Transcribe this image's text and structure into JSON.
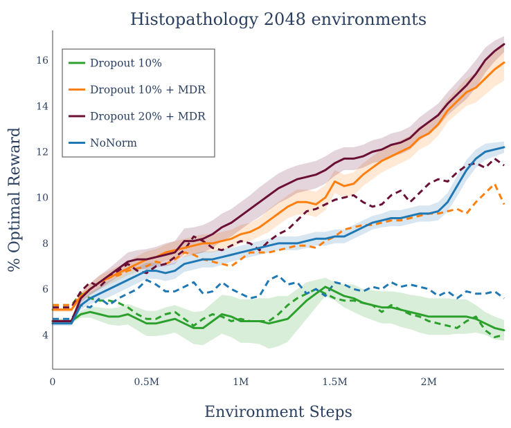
{
  "chart_data": {
    "type": "line",
    "title": "Histopathology 2048 environments",
    "xlabel": "Environment Steps",
    "ylabel": "% Optimal Reward",
    "xlim": [
      0,
      2.4
    ],
    "ylim": [
      2.5,
      17.3
    ],
    "x_ticks": [
      {
        "value": 0,
        "label": "0"
      },
      {
        "value": 0.5,
        "label": "0.5M"
      },
      {
        "value": 1,
        "label": "1M"
      },
      {
        "value": 1.5,
        "label": "1.5M"
      },
      {
        "value": 2,
        "label": "2M"
      }
    ],
    "y_ticks": [
      {
        "value": 4,
        "label": "4"
      },
      {
        "value": 6,
        "label": "6"
      },
      {
        "value": 8,
        "label": "8"
      },
      {
        "value": 10,
        "label": "10"
      },
      {
        "value": 12,
        "label": "12"
      },
      {
        "value": 14,
        "label": "14"
      },
      {
        "value": 16,
        "label": "16"
      }
    ],
    "legend_position": "top-left",
    "series": [
      {
        "name": "Dropout 10%",
        "color": "#2ca02c",
        "legend": true,
        "style": "solid",
        "x": [
          0,
          0.1,
          0.15,
          0.2,
          0.25,
          0.3,
          0.35,
          0.4,
          0.45,
          0.5,
          0.55,
          0.6,
          0.65,
          0.7,
          0.75,
          0.8,
          0.85,
          0.9,
          0.95,
          1.0,
          1.05,
          1.1,
          1.15,
          1.2,
          1.25,
          1.3,
          1.35,
          1.4,
          1.45,
          1.5,
          1.55,
          1.6,
          1.65,
          1.7,
          1.75,
          1.8,
          1.85,
          1.9,
          1.95,
          2.0,
          2.05,
          2.1,
          2.15,
          2.2,
          2.25,
          2.3,
          2.35,
          2.4
        ],
        "y": [
          4.6,
          4.6,
          4.9,
          5.0,
          4.9,
          4.8,
          4.8,
          4.9,
          4.7,
          4.5,
          4.5,
          4.6,
          4.7,
          4.5,
          4.3,
          4.3,
          4.6,
          4.9,
          4.8,
          4.6,
          4.6,
          4.6,
          4.5,
          4.6,
          4.7,
          5.1,
          5.5,
          5.8,
          6.1,
          5.9,
          5.7,
          5.6,
          5.4,
          5.3,
          5.2,
          5.2,
          5.1,
          5.0,
          4.9,
          4.8,
          4.8,
          4.8,
          4.8,
          4.8,
          4.7,
          4.5,
          4.3,
          4.2
        ],
        "band_width": [
          0.1,
          0.1,
          0.15,
          0.25,
          0.3,
          0.35,
          0.4,
          0.45,
          0.5,
          0.55,
          0.55,
          0.6,
          0.6,
          0.65,
          0.7,
          0.75,
          0.8,
          0.85,
          0.9,
          0.95,
          0.95,
          1.0,
          1.1,
          1.1,
          1.0,
          0.9,
          0.8,
          0.6,
          0.4,
          0.4,
          0.5,
          0.6,
          0.6,
          0.65,
          0.7,
          0.7,
          0.75,
          0.75,
          0.8,
          0.8,
          0.8,
          0.8,
          0.75,
          0.75,
          0.6,
          0.5,
          0.5,
          0.45
        ]
      },
      {
        "name": "Dropout 10% + MDR",
        "color": "#ff7f0e",
        "legend": true,
        "style": "solid",
        "x": [
          0,
          0.1,
          0.15,
          0.2,
          0.25,
          0.3,
          0.35,
          0.4,
          0.45,
          0.5,
          0.55,
          0.6,
          0.65,
          0.7,
          0.75,
          0.8,
          0.85,
          0.9,
          0.95,
          1.0,
          1.05,
          1.1,
          1.15,
          1.2,
          1.25,
          1.3,
          1.35,
          1.4,
          1.45,
          1.5,
          1.55,
          1.6,
          1.65,
          1.7,
          1.75,
          1.8,
          1.85,
          1.9,
          1.95,
          2.0,
          2.05,
          2.1,
          2.15,
          2.2,
          2.25,
          2.3,
          2.35,
          2.4
        ],
        "y": [
          5.1,
          5.1,
          5.7,
          6.0,
          6.3,
          6.5,
          6.7,
          6.9,
          7.1,
          7.3,
          7.4,
          7.6,
          7.7,
          7.8,
          7.9,
          8.0,
          8.0,
          8.1,
          8.2,
          8.4,
          8.5,
          8.7,
          9.0,
          9.3,
          9.6,
          9.8,
          9.8,
          9.7,
          10.0,
          10.7,
          10.5,
          10.6,
          11.0,
          11.3,
          11.6,
          11.8,
          12.0,
          12.2,
          12.6,
          12.8,
          13.2,
          13.8,
          14.2,
          14.6,
          14.8,
          15.2,
          15.6,
          15.9
        ],
        "band_width": [
          0.1,
          0.1,
          0.2,
          0.25,
          0.3,
          0.3,
          0.3,
          0.3,
          0.35,
          0.35,
          0.35,
          0.35,
          0.4,
          0.4,
          0.4,
          0.4,
          0.4,
          0.4,
          0.4,
          0.4,
          0.4,
          0.4,
          0.5,
          0.5,
          0.5,
          0.55,
          0.55,
          0.55,
          0.55,
          0.5,
          0.5,
          0.5,
          0.5,
          0.5,
          0.5,
          0.5,
          0.5,
          0.5,
          0.5,
          0.5,
          0.5,
          0.5,
          0.55,
          0.6,
          0.65,
          0.7,
          0.75,
          0.8
        ]
      },
      {
        "name": "Dropout 20% + MDR",
        "color": "#6a0f36",
        "legend": true,
        "style": "solid",
        "x": [
          0,
          0.1,
          0.15,
          0.2,
          0.25,
          0.3,
          0.35,
          0.4,
          0.45,
          0.5,
          0.55,
          0.6,
          0.65,
          0.7,
          0.75,
          0.8,
          0.85,
          0.9,
          0.95,
          1.0,
          1.05,
          1.1,
          1.15,
          1.2,
          1.25,
          1.3,
          1.35,
          1.4,
          1.45,
          1.5,
          1.55,
          1.6,
          1.65,
          1.7,
          1.75,
          1.8,
          1.85,
          1.9,
          1.95,
          2.0,
          2.05,
          2.1,
          2.15,
          2.2,
          2.25,
          2.3,
          2.35,
          2.4
        ],
        "y": [
          4.6,
          4.6,
          5.6,
          6.0,
          6.3,
          6.6,
          6.9,
          7.2,
          7.3,
          7.3,
          7.4,
          7.5,
          7.6,
          8.1,
          8.1,
          8.2,
          8.4,
          8.7,
          8.9,
          9.2,
          9.5,
          9.8,
          10.1,
          10.4,
          10.6,
          10.8,
          10.9,
          11.0,
          11.2,
          11.5,
          11.7,
          11.7,
          11.8,
          12.0,
          12.1,
          12.3,
          12.4,
          12.6,
          13.0,
          13.3,
          13.6,
          14.1,
          14.5,
          14.9,
          15.4,
          16.0,
          16.4,
          16.7
        ],
        "band_width": [
          0.1,
          0.1,
          0.2,
          0.25,
          0.3,
          0.3,
          0.35,
          0.4,
          0.4,
          0.45,
          0.45,
          0.5,
          0.5,
          0.55,
          0.6,
          0.6,
          0.6,
          0.6,
          0.6,
          0.6,
          0.6,
          0.65,
          0.65,
          0.65,
          0.65,
          0.6,
          0.6,
          0.6,
          0.6,
          0.55,
          0.5,
          0.5,
          0.5,
          0.5,
          0.5,
          0.5,
          0.5,
          0.5,
          0.5,
          0.5,
          0.5,
          0.5,
          0.55,
          0.6,
          0.6,
          0.55,
          0.45,
          0.35
        ]
      },
      {
        "name": "NoNorm",
        "color": "#1f77b4",
        "legend": true,
        "style": "solid",
        "x": [
          0,
          0.1,
          0.15,
          0.2,
          0.25,
          0.3,
          0.35,
          0.4,
          0.45,
          0.5,
          0.55,
          0.6,
          0.65,
          0.7,
          0.75,
          0.8,
          0.85,
          0.9,
          0.95,
          1.0,
          1.05,
          1.1,
          1.15,
          1.2,
          1.25,
          1.3,
          1.35,
          1.4,
          1.45,
          1.5,
          1.55,
          1.6,
          1.65,
          1.7,
          1.75,
          1.8,
          1.85,
          1.9,
          1.95,
          2.0,
          2.05,
          2.1,
          2.15,
          2.2,
          2.25,
          2.3,
          2.35,
          2.4
        ],
        "y": [
          4.5,
          4.5,
          5.3,
          5.6,
          5.8,
          6.0,
          6.2,
          6.4,
          6.6,
          6.8,
          6.8,
          6.7,
          6.8,
          7.1,
          7.2,
          7.3,
          7.3,
          7.4,
          7.5,
          7.6,
          7.7,
          7.8,
          7.9,
          8.0,
          8.0,
          8.0,
          8.1,
          8.2,
          8.2,
          8.3,
          8.3,
          8.5,
          8.7,
          8.9,
          9.0,
          9.1,
          9.1,
          9.2,
          9.3,
          9.3,
          9.4,
          9.8,
          10.5,
          11.2,
          11.7,
          12.0,
          12.1,
          12.2
        ],
        "band_width": [
          0.1,
          0.1,
          0.2,
          0.25,
          0.3,
          0.35,
          0.35,
          0.35,
          0.35,
          0.35,
          0.35,
          0.35,
          0.35,
          0.35,
          0.35,
          0.35,
          0.35,
          0.35,
          0.3,
          0.3,
          0.3,
          0.3,
          0.3,
          0.3,
          0.3,
          0.3,
          0.3,
          0.3,
          0.3,
          0.3,
          0.3,
          0.3,
          0.3,
          0.3,
          0.3,
          0.35,
          0.35,
          0.35,
          0.35,
          0.35,
          0.4,
          0.4,
          0.45,
          0.45,
          0.4,
          0.35,
          0.3,
          0.25
        ]
      },
      {
        "name": "Dropout 10% (dashed)",
        "color": "#2ca02c",
        "legend": false,
        "style": "dashed",
        "x": [
          0,
          0.1,
          0.15,
          0.2,
          0.25,
          0.3,
          0.35,
          0.4,
          0.45,
          0.5,
          0.55,
          0.6,
          0.65,
          0.7,
          0.75,
          0.8,
          0.85,
          0.9,
          0.95,
          1.0,
          1.05,
          1.1,
          1.15,
          1.2,
          1.25,
          1.3,
          1.35,
          1.4,
          1.45,
          1.5,
          1.55,
          1.6,
          1.65,
          1.7,
          1.75,
          1.8,
          1.85,
          1.9,
          1.95,
          2.0,
          2.05,
          2.1,
          2.15,
          2.2,
          2.25,
          2.3,
          2.35,
          2.4
        ],
        "y": [
          5.3,
          5.3,
          5.8,
          5.6,
          5.5,
          5.5,
          5.4,
          5.2,
          4.9,
          4.7,
          4.7,
          4.9,
          5.0,
          4.7,
          4.4,
          4.7,
          4.9,
          4.8,
          4.6,
          4.7,
          4.6,
          4.6,
          4.6,
          4.9,
          5.3,
          5.6,
          5.8,
          6.0,
          5.8,
          5.6,
          5.5,
          5.5,
          5.4,
          5.3,
          5.0,
          5.3,
          5.1,
          4.9,
          4.8,
          4.6,
          4.5,
          4.4,
          4.3,
          4.6,
          4.8,
          4.2,
          3.9,
          4.0
        ]
      },
      {
        "name": "Dropout 10% + MDR (dashed)",
        "color": "#ff7f0e",
        "legend": false,
        "style": "dashed",
        "x": [
          0,
          0.1,
          0.15,
          0.2,
          0.25,
          0.3,
          0.35,
          0.4,
          0.45,
          0.5,
          0.55,
          0.6,
          0.65,
          0.7,
          0.75,
          0.8,
          0.85,
          0.9,
          0.95,
          1.0,
          1.05,
          1.1,
          1.15,
          1.2,
          1.25,
          1.3,
          1.35,
          1.4,
          1.45,
          1.5,
          1.55,
          1.6,
          1.65,
          1.7,
          1.75,
          1.8,
          1.85,
          1.9,
          1.95,
          2.0,
          2.05,
          2.1,
          2.15,
          2.2,
          2.25,
          2.3,
          2.35,
          2.4
        ],
        "y": [
          5.3,
          5.3,
          5.7,
          6.0,
          6.3,
          6.5,
          6.6,
          6.8,
          6.9,
          7.0,
          7.2,
          7.1,
          7.3,
          7.6,
          7.5,
          7.3,
          7.2,
          7.1,
          7.0,
          7.3,
          7.6,
          7.6,
          7.6,
          7.7,
          7.8,
          7.9,
          7.9,
          7.8,
          8.1,
          8.3,
          8.6,
          8.7,
          8.8,
          8.8,
          8.9,
          9.0,
          9.0,
          9.1,
          9.2,
          9.3,
          9.3,
          9.4,
          9.5,
          9.3,
          9.8,
          10.2,
          10.6,
          9.7
        ]
      },
      {
        "name": "Dropout 20% + MDR (dashed)",
        "color": "#6a0f36",
        "legend": false,
        "style": "dashed",
        "x": [
          0,
          0.1,
          0.15,
          0.2,
          0.25,
          0.3,
          0.35,
          0.4,
          0.45,
          0.5,
          0.55,
          0.6,
          0.65,
          0.7,
          0.75,
          0.8,
          0.85,
          0.9,
          0.95,
          1.0,
          1.05,
          1.1,
          1.15,
          1.2,
          1.25,
          1.3,
          1.35,
          1.4,
          1.45,
          1.5,
          1.55,
          1.6,
          1.65,
          1.7,
          1.75,
          1.8,
          1.85,
          1.9,
          1.95,
          2.0,
          2.05,
          2.1,
          2.15,
          2.2,
          2.25,
          2.3,
          2.35,
          2.4
        ],
        "y": [
          5.2,
          5.2,
          5.9,
          6.3,
          6.1,
          6.5,
          6.8,
          7.1,
          6.8,
          6.7,
          7.0,
          7.1,
          7.4,
          7.7,
          8.3,
          8.1,
          7.8,
          7.7,
          7.9,
          8.1,
          8.0,
          7.7,
          8.1,
          8.4,
          8.6,
          9.0,
          9.4,
          9.5,
          9.7,
          9.9,
          10.0,
          10.1,
          9.8,
          9.6,
          9.7,
          10.1,
          10.3,
          9.8,
          10.2,
          10.6,
          10.8,
          10.7,
          11.1,
          11.4,
          11.5,
          11.3,
          11.7,
          11.4
        ]
      },
      {
        "name": "NoNorm (dashed)",
        "color": "#1f77b4",
        "legend": false,
        "style": "dashed",
        "x": [
          0,
          0.1,
          0.15,
          0.2,
          0.25,
          0.3,
          0.35,
          0.4,
          0.45,
          0.5,
          0.55,
          0.6,
          0.65,
          0.7,
          0.75,
          0.8,
          0.85,
          0.9,
          0.95,
          1.0,
          1.05,
          1.1,
          1.15,
          1.2,
          1.25,
          1.3,
          1.35,
          1.4,
          1.45,
          1.5,
          1.55,
          1.6,
          1.65,
          1.7,
          1.75,
          1.8,
          1.85,
          1.9,
          1.95,
          2.0,
          2.05,
          2.1,
          2.15,
          2.2,
          2.25,
          2.3,
          2.35,
          2.4
        ],
        "y": [
          4.7,
          4.7,
          5.3,
          5.2,
          5.6,
          5.3,
          5.6,
          5.8,
          6.0,
          6.4,
          6.2,
          5.9,
          5.9,
          6.1,
          6.3,
          5.8,
          5.9,
          6.3,
          6.0,
          5.8,
          5.6,
          5.7,
          6.4,
          6.6,
          6.2,
          6.3,
          5.8,
          6.0,
          5.7,
          6.3,
          6.2,
          6.0,
          5.9,
          6.1,
          6.0,
          6.3,
          6.1,
          6.2,
          6.1,
          6.0,
          5.7,
          5.9,
          5.6,
          5.9,
          5.8,
          5.8,
          5.9,
          5.6
        ]
      }
    ]
  }
}
